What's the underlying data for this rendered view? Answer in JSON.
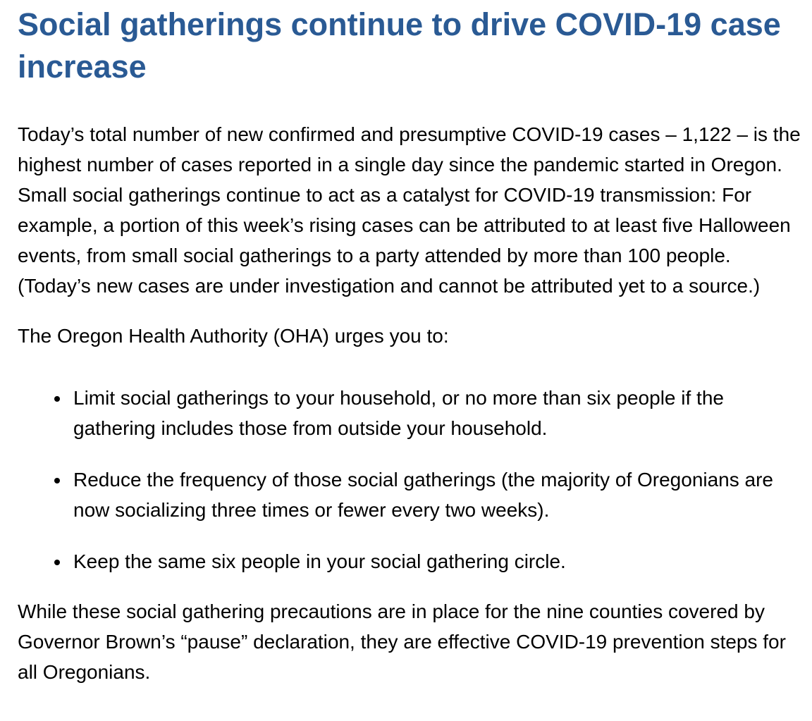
{
  "page": {
    "accent_blue": "#2a5a94",
    "text_color": "#000000",
    "background_color": "#ffffff",
    "title": "Social gatherings continue to drive COVID-19 case increase",
    "paragraphs": {
      "intro": "Today’s total number of new confirmed and presumptive COVID-19 cases – 1,122 – is the highest number of cases reported in a single day since the pandemic started in Oregon. Small social gatherings continue to act as a catalyst for COVID-19 transmission: For example, a portion of this week’s rising cases can be attributed to at least five Halloween events, from small social gatherings to a party attended by more than 100 people. (Today’s new cases are under investigation and cannot be attributed yet to a source.)",
      "urges": "The Oregon Health Authority (OHA) urges you to:",
      "closing": "While these social gathering precautions are in place for the nine counties covered by Governor Brown’s “pause” declaration, they are effective COVID-19 prevention steps for all Oregonians."
    },
    "bullets": [
      "Limit social gatherings to your household, or no more than six people if the gathering includes those from outside your household.",
      "Reduce the frequency of those social gatherings (the majority of Oregonians are now socializing three times or fewer every two weeks).",
      "Keep the same six people in your social gathering circle."
    ]
  }
}
